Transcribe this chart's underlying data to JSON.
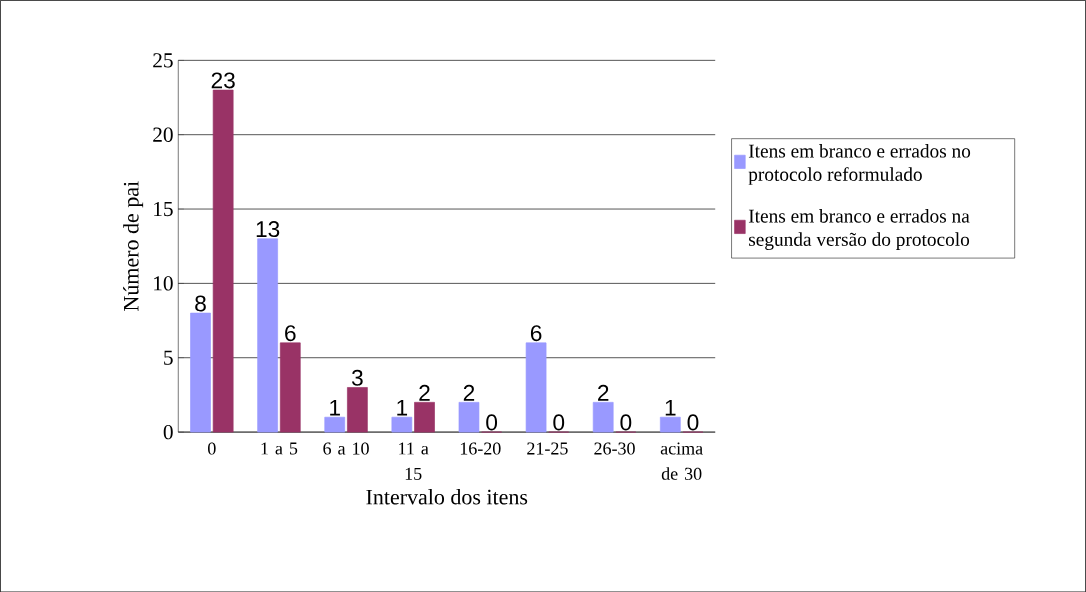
{
  "chart_data": {
    "type": "bar",
    "xlabel": "Intervalo dos itens",
    "ylabel": "Número de pai",
    "categories": [
      "0",
      "1 a 5",
      "6 a 10",
      "11 a 15",
      "16-20",
      "21-25",
      "26-30",
      "acima de 30"
    ],
    "series": [
      {
        "name": "Itens em branco e errados no protocolo reformulado",
        "color": "#9999ff",
        "values": [
          8,
          13,
          1,
          1,
          2,
          6,
          2,
          1
        ]
      },
      {
        "name": "Itens em branco e errados na segunda versão do protocolo",
        "color": "#993366",
        "values": [
          23,
          6,
          3,
          2,
          0,
          0,
          0,
          0
        ]
      }
    ],
    "ylim": [
      0,
      25
    ],
    "yticks": [
      0,
      5,
      10,
      15,
      20,
      25
    ],
    "grid": "y",
    "legend": "right",
    "data_labels": true
  }
}
